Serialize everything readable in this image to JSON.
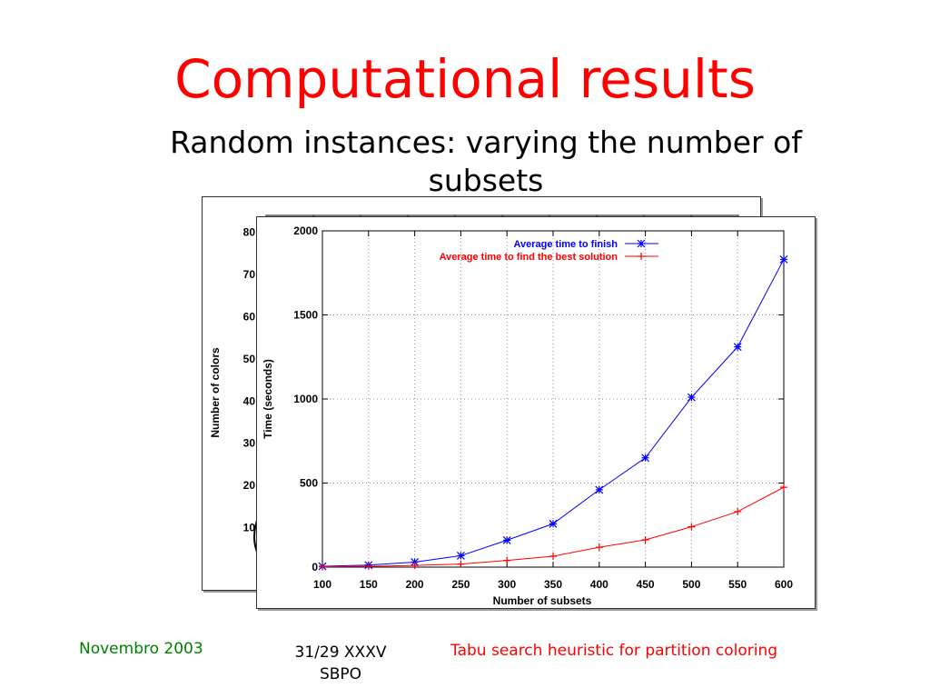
{
  "slide": {
    "title": "Computational results",
    "subtitle": "Random instances: varying the number of subsets"
  },
  "footer": {
    "date": "Novembro 2003",
    "page_line1": "31/29 XXXV",
    "page_line2": "SBPO",
    "topic": "Tabu search heuristic for partition coloring"
  },
  "colors": {
    "title": "#ff0000",
    "series_finish": "#0000ff",
    "series_best": "#ff0000",
    "footer_date": "#008000"
  },
  "chart_data": [
    {
      "type": "line",
      "ylabel": "Number of colors",
      "yticks": [
        10,
        20,
        30,
        40,
        50,
        60,
        70,
        80
      ],
      "note": "partially hidden chart behind"
    },
    {
      "type": "line",
      "xlabel": "Number of subsets",
      "ylabel": "Time (seconds)",
      "x": [
        100,
        150,
        200,
        250,
        300,
        350,
        400,
        450,
        500,
        550,
        600
      ],
      "xlim": [
        100,
        600
      ],
      "ylim": [
        0,
        2000
      ],
      "yticks": [
        0,
        500,
        1000,
        1500,
        2000
      ],
      "grid": true,
      "legend": "top-right",
      "series": [
        {
          "name": "Average time to finish",
          "marker": "star",
          "values": [
            5,
            12,
            30,
            68,
            160,
            258,
            460,
            650,
            1010,
            1310,
            1830
          ]
        },
        {
          "name": "Average time to find the best solution",
          "marker": "plus",
          "values": [
            2,
            5,
            10,
            18,
            40,
            65,
            118,
            162,
            240,
            330,
            475
          ]
        }
      ]
    }
  ]
}
